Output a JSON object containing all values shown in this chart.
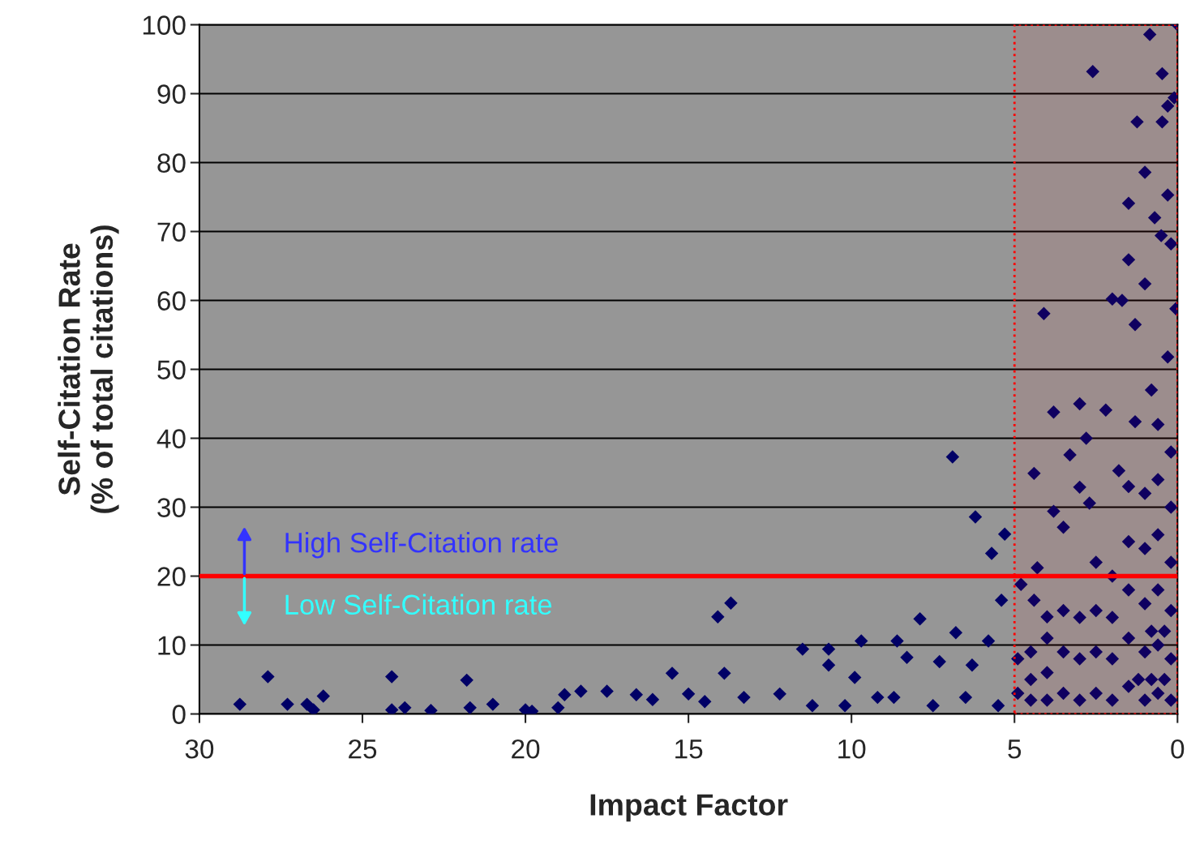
{
  "chart_data": {
    "type": "scatter",
    "xlabel": "Impact Factor",
    "ylabel": "Self-Citation Rate\n(% of total citations)",
    "xlim": [
      30,
      0
    ],
    "xticks": [
      30,
      25,
      20,
      15,
      10,
      5,
      0
    ],
    "ylim": [
      0,
      100
    ],
    "yticks": [
      0,
      10,
      20,
      30,
      40,
      50,
      60,
      70,
      80,
      90,
      100
    ],
    "grid": "y",
    "marker": "diamond",
    "legend": false,
    "ref_lines": [
      {
        "axis": "y",
        "value": 20,
        "color": "#ff0000",
        "line_style": "solid"
      }
    ],
    "bands": [
      {
        "axis": "x",
        "from": 5,
        "to": 0,
        "color": "#ff0000"
      }
    ],
    "annotations": [
      "High Self-Citation rate",
      "Low Self-Citation rate"
    ],
    "series": [
      {
        "color": "#000066",
        "x": [
          28.76,
          27.9,
          27.3,
          26.7,
          26.5,
          26.2,
          24.1,
          24.1,
          23.7,
          22.9,
          21.8,
          21.7,
          21.0,
          20.0,
          19.8,
          19.0,
          18.8,
          18.3,
          17.5,
          16.6,
          16.1,
          15.5,
          14.1,
          13.7,
          13.9,
          15.0,
          14.5,
          13.3,
          12.2,
          11.5,
          10.7,
          11.2,
          10.2,
          9.7,
          10.7,
          9.9,
          8.7,
          8.6,
          7.9,
          6.9,
          6.2,
          5.7,
          5.3,
          9.2,
          8.3,
          7.3,
          6.8,
          6.3,
          5.8,
          5.4,
          7.5,
          6.5,
          5.5,
          4.1,
          3.8,
          4.4,
          2.6,
          0.85,
          0.47,
          0,
          1.24,
          0.47,
          0.3,
          0.1,
          1.0,
          1.5,
          0.7,
          0.3,
          1.5,
          0.5,
          0.2,
          2.0,
          1.0,
          1.3,
          1.7,
          3.0,
          2.2,
          2.8,
          3.3,
          3.0,
          3.8,
          3.5,
          2.7,
          1.8,
          1.3,
          0.8,
          0.3,
          0.05,
          4.3,
          4.8,
          4.4,
          4.0,
          0.2,
          0.2,
          0.2,
          0.2,
          0.2,
          0.2,
          0.6,
          0.6,
          0.6,
          0.6,
          0.6,
          0.6,
          1.0,
          1.0,
          1.0,
          1.0,
          1.0,
          1.5,
          1.5,
          1.5,
          1.5,
          1.5,
          2.0,
          2.0,
          2.0,
          2.0,
          2.5,
          2.5,
          2.5,
          2.5,
          3.0,
          3.0,
          3.0,
          3.5,
          3.5,
          3.5,
          4.0,
          4.0,
          4.0,
          4.5,
          4.5,
          4.5,
          4.9,
          4.9,
          0.4,
          0.8,
          1.2,
          0.4,
          0.8
        ],
        "values": [
          1.4,
          5.4,
          1.4,
          1.4,
          0.6,
          2.6,
          5.4,
          0.6,
          0.9,
          0.5,
          4.9,
          0.9,
          1.4,
          0.6,
          0.4,
          0.9,
          2.8,
          3.3,
          3.3,
          2.8,
          2.1,
          5.9,
          14.1,
          16.1,
          5.9,
          2.9,
          1.8,
          2.4,
          2.9,
          9.4,
          9.4,
          1.2,
          1.2,
          10.6,
          7.1,
          5.3,
          2.4,
          10.6,
          13.8,
          37.3,
          28.6,
          23.3,
          26.1,
          2.4,
          8.2,
          7.6,
          11.8,
          7.1,
          10.6,
          16.5,
          1.2,
          2.4,
          1.2,
          58.1,
          43.8,
          34.9,
          93.2,
          98.6,
          92.9,
          100,
          85.9,
          85.9,
          88.2,
          89.4,
          78.6,
          74.1,
          72.0,
          75.3,
          65.9,
          69.4,
          68.2,
          60.2,
          62.4,
          56.5,
          60,
          45,
          44.1,
          40,
          37.6,
          32.9,
          29.4,
          27.1,
          30.6,
          35.3,
          42.4,
          47,
          51.8,
          58.8,
          21.2,
          18.8,
          16.5,
          14.1,
          2,
          8,
          15,
          22,
          30,
          38,
          3,
          10,
          18,
          26,
          34,
          42,
          2,
          9,
          16,
          24,
          32,
          4,
          11,
          18,
          25,
          33,
          2,
          8,
          14,
          20,
          3,
          9,
          15,
          22,
          2,
          8,
          14,
          3,
          9,
          15,
          2,
          6,
          11,
          2,
          5,
          9,
          3,
          8,
          5,
          5,
          5,
          12,
          12
        ]
      }
    ]
  }
}
